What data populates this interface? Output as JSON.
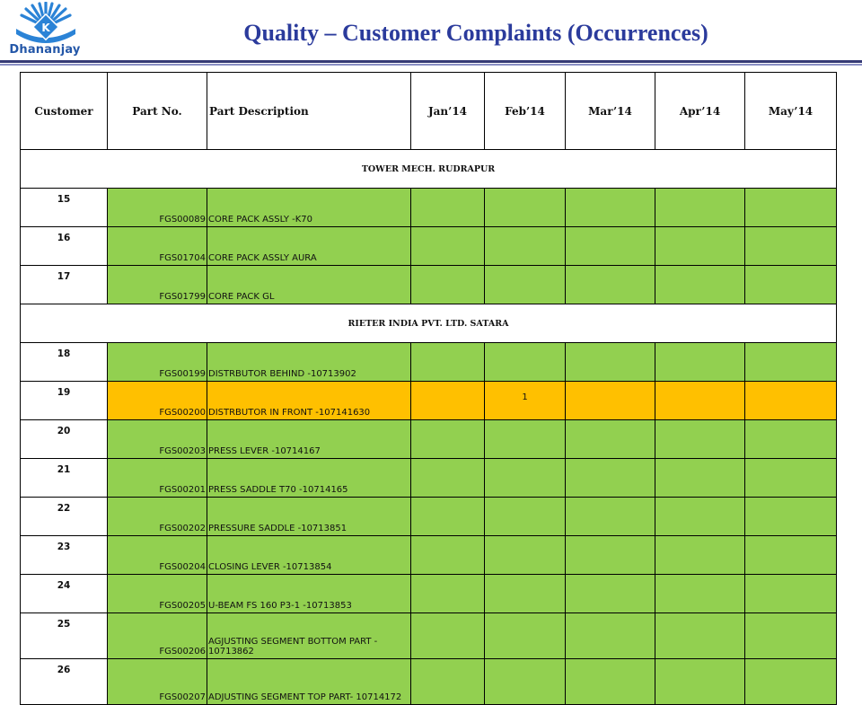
{
  "brand": {
    "name": "Dhananjay",
    "logo_letter": "K"
  },
  "page": {
    "title": "Quality – Customer Complaints (Occurrences)"
  },
  "table": {
    "headers": {
      "customer": "Customer",
      "part_no": "Part No.",
      "part_description": "Part Description",
      "months": [
        "Jan’14",
        "Feb’14",
        "Mar’14",
        "Apr’14",
        "May’14"
      ]
    },
    "groups": [
      {
        "name": "TOWER MECH. RUDRAPUR",
        "rows": [
          {
            "customer": "15",
            "part_no": "FGS00089",
            "description": "CORE PACK ASSLY -K70",
            "values": [
              "",
              "",
              "",
              "",
              ""
            ]
          },
          {
            "customer": "16",
            "part_no": "FGS01704",
            "description": "CORE PACK ASSLY AURA",
            "values": [
              "",
              "",
              "",
              "",
              ""
            ]
          },
          {
            "customer": "17",
            "part_no": "FGS01799",
            "description": "CORE PACK GL",
            "values": [
              "",
              "",
              "",
              "",
              ""
            ]
          }
        ]
      },
      {
        "name": "RIETER INDIA PVT. LTD. SATARA",
        "rows": [
          {
            "customer": "18",
            "part_no": "FGS00199",
            "description": "DISTRBUTOR BEHIND -10713902",
            "values": [
              "",
              "",
              "",
              "",
              ""
            ]
          },
          {
            "customer": "19",
            "part_no": "FGS00200",
            "description": "DISTRBUTOR IN FRONT -107141630",
            "values": [
              "",
              "1",
              "",
              "",
              ""
            ],
            "highlight": true
          },
          {
            "customer": "20",
            "part_no": "FGS00203",
            "description": "PRESS LEVER -10714167",
            "values": [
              "",
              "",
              "",
              "",
              ""
            ]
          },
          {
            "customer": "21",
            "part_no": "FGS00201",
            "description": "PRESS SADDLE T70 -10714165",
            "values": [
              "",
              "",
              "",
              "",
              ""
            ]
          },
          {
            "customer": "22",
            "part_no": "FGS00202",
            "description": "PRESSURE SADDLE -10713851",
            "values": [
              "",
              "",
              "",
              "",
              ""
            ]
          },
          {
            "customer": "23",
            "part_no": "FGS00204",
            "description": "CLOSING LEVER -10713854",
            "values": [
              "",
              "",
              "",
              "",
              ""
            ]
          },
          {
            "customer": "24",
            "part_no": "FGS00205",
            "description": "U-BEAM FS 160 P3-1 -10713853",
            "values": [
              "",
              "",
              "",
              "",
              ""
            ]
          },
          {
            "customer": "25",
            "part_no": "FGS00206",
            "description": "AGJUSTING SEGMENT BOTTOM PART - 10713862",
            "values": [
              "",
              "",
              "",
              "",
              ""
            ]
          },
          {
            "customer": "26",
            "part_no": "FGS00207",
            "description": "ADJUSTING SEGMENT TOP PART- 10714172",
            "values": [
              "",
              "",
              "",
              "",
              ""
            ]
          }
        ]
      }
    ]
  },
  "colors": {
    "ok": "#92d050",
    "occurrence": "#ffc000",
    "title": "#2b3b9c",
    "rule": "#353a75"
  }
}
